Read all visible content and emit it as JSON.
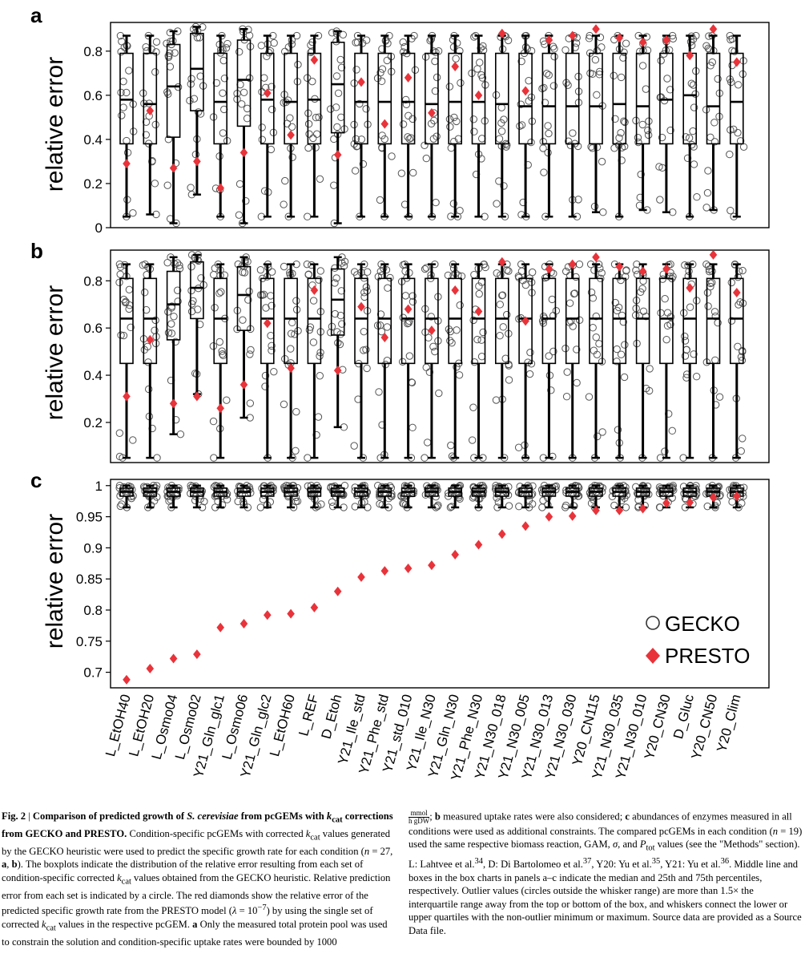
{
  "figure": {
    "panels": [
      {
        "letter": "a",
        "ylabel": "relative error"
      },
      {
        "letter": "b",
        "ylabel": "relative error"
      },
      {
        "letter": "c",
        "ylabel": "relative error"
      }
    ],
    "categories": [
      "L_EtOH40",
      "L_EtOH20",
      "L_Osmo04",
      "L_Osmo02",
      "Y21_Gln_glc1",
      "L_Osmo06",
      "Y21_Gln_glc2",
      "L_EtOH60",
      "L_REF",
      "D_Etoh",
      "Y21_Ile_std",
      "Y21_Phe_std",
      "Y21_std_010",
      "Y21_Ile_N30",
      "Y21_Gln_N30",
      "Y21_Phe_N30",
      "Y21_N30_018",
      "Y21_N30_005",
      "Y21_N30_013",
      "Y21_N30_030",
      "Y20_CN115",
      "Y21_N30_035",
      "Y21_N30_010",
      "Y20_CN30",
      "D_Gluc",
      "Y20_CN50",
      "Y20_Clim"
    ],
    "legend": {
      "gecko": "GECKO",
      "presto": "PRESTO"
    },
    "colors": {
      "presto": "#e8333a",
      "gecko": "#555555"
    }
  },
  "chart_data": [
    {
      "type": "box",
      "panel": "a",
      "ylabel": "relative error",
      "ylim": [
        0,
        0.93
      ],
      "yticks": [
        "0",
        "0.2",
        "0.4",
        "0.6",
        "0.8"
      ],
      "box_stats": {
        "L_EtOH40": {
          "whislo": 0.05,
          "q1": 0.38,
          "med": 0.58,
          "q3": 0.79,
          "whishi": 0.87
        },
        "L_EtOH20": {
          "whislo": 0.06,
          "q1": 0.38,
          "med": 0.56,
          "q3": 0.79,
          "whishi": 0.87
        },
        "L_Osmo04": {
          "whislo": 0.02,
          "q1": 0.41,
          "med": 0.64,
          "q3": 0.83,
          "whishi": 0.89
        },
        "L_Osmo02": {
          "whislo": 0.15,
          "q1": 0.53,
          "med": 0.72,
          "q3": 0.88,
          "whishi": 0.91
        },
        "Y21_Gln_glc1": {
          "whislo": 0.05,
          "q1": 0.38,
          "med": 0.57,
          "q3": 0.79,
          "whishi": 0.87
        },
        "L_Osmo06": {
          "whislo": 0.02,
          "q1": 0.46,
          "med": 0.67,
          "q3": 0.85,
          "whishi": 0.9
        },
        "Y21_Gln_glc2": {
          "whislo": 0.05,
          "q1": 0.38,
          "med": 0.58,
          "q3": 0.79,
          "whishi": 0.87
        },
        "L_EtOH60": {
          "whislo": 0.05,
          "q1": 0.38,
          "med": 0.57,
          "q3": 0.79,
          "whishi": 0.87
        },
        "L_REF": {
          "whislo": 0.05,
          "q1": 0.38,
          "med": 0.58,
          "q3": 0.79,
          "whishi": 0.87
        },
        "D_Etoh": {
          "whislo": 0.02,
          "q1": 0.43,
          "med": 0.65,
          "q3": 0.84,
          "whishi": 0.89
        },
        "Y21_Ile_std": {
          "whislo": 0.05,
          "q1": 0.38,
          "med": 0.57,
          "q3": 0.79,
          "whishi": 0.87
        },
        "Y21_Phe_std": {
          "whislo": 0.05,
          "q1": 0.38,
          "med": 0.57,
          "q3": 0.79,
          "whishi": 0.87
        },
        "Y21_std_010": {
          "whislo": 0.05,
          "q1": 0.38,
          "med": 0.57,
          "q3": 0.79,
          "whishi": 0.87
        },
        "Y21_Ile_N30": {
          "whislo": 0.05,
          "q1": 0.38,
          "med": 0.56,
          "q3": 0.79,
          "whishi": 0.87
        },
        "Y21_Gln_N30": {
          "whislo": 0.05,
          "q1": 0.38,
          "med": 0.57,
          "q3": 0.79,
          "whishi": 0.87
        },
        "Y21_Phe_N30": {
          "whislo": 0.05,
          "q1": 0.38,
          "med": 0.57,
          "q3": 0.79,
          "whishi": 0.87
        },
        "Y21_N30_018": {
          "whislo": 0.05,
          "q1": 0.38,
          "med": 0.56,
          "q3": 0.79,
          "whishi": 0.87
        },
        "Y21_N30_005": {
          "whislo": 0.05,
          "q1": 0.38,
          "med": 0.55,
          "q3": 0.79,
          "whishi": 0.87
        },
        "Y21_N30_013": {
          "whislo": 0.05,
          "q1": 0.38,
          "med": 0.55,
          "q3": 0.79,
          "whishi": 0.87
        },
        "Y21_N30_030": {
          "whislo": 0.05,
          "q1": 0.38,
          "med": 0.55,
          "q3": 0.79,
          "whishi": 0.87
        },
        "Y20_CN115": {
          "whislo": 0.07,
          "q1": 0.38,
          "med": 0.55,
          "q3": 0.79,
          "whishi": 0.87
        },
        "Y21_N30_035": {
          "whislo": 0.05,
          "q1": 0.38,
          "med": 0.56,
          "q3": 0.79,
          "whishi": 0.87
        },
        "Y21_N30_010": {
          "whislo": 0.08,
          "q1": 0.38,
          "med": 0.55,
          "q3": 0.79,
          "whishi": 0.87
        },
        "Y20_CN30": {
          "whislo": 0.07,
          "q1": 0.38,
          "med": 0.58,
          "q3": 0.79,
          "whishi": 0.87
        },
        "D_Gluc": {
          "whislo": 0.05,
          "q1": 0.38,
          "med": 0.6,
          "q3": 0.79,
          "whishi": 0.87
        },
        "Y20_CN50": {
          "whislo": 0.08,
          "q1": 0.38,
          "med": 0.55,
          "q3": 0.79,
          "whishi": 0.87
        },
        "Y20_Clim": {
          "whislo": 0.05,
          "q1": 0.38,
          "med": 0.57,
          "q3": 0.79,
          "whishi": 0.87
        }
      },
      "presto": [
        0.29,
        0.53,
        0.27,
        0.3,
        0.18,
        0.34,
        0.61,
        0.42,
        0.76,
        0.33,
        0.66,
        0.47,
        0.68,
        0.52,
        0.73,
        0.6,
        0.88,
        0.62,
        0.85,
        0.87,
        0.9,
        0.86,
        0.84,
        0.85,
        0.78,
        0.9,
        0.75
      ]
    },
    {
      "type": "box",
      "panel": "b",
      "ylabel": "relative error",
      "ylim": [
        0.03,
        0.93
      ],
      "yticks": [
        "0.2",
        "0.4",
        "0.6",
        "0.8"
      ],
      "box_stats": {
        "L_EtOH40": {
          "whislo": 0.05,
          "q1": 0.45,
          "med": 0.64,
          "q3": 0.81,
          "whishi": 0.87
        },
        "L_EtOH20": {
          "whislo": 0.05,
          "q1": 0.45,
          "med": 0.64,
          "q3": 0.81,
          "whishi": 0.87
        },
        "L_Osmo04": {
          "whislo": 0.15,
          "q1": 0.55,
          "med": 0.7,
          "q3": 0.84,
          "whishi": 0.9
        },
        "L_Osmo02": {
          "whislo": 0.32,
          "q1": 0.64,
          "med": 0.77,
          "q3": 0.88,
          "whishi": 0.91
        },
        "Y21_Gln_glc1": {
          "whislo": 0.05,
          "q1": 0.45,
          "med": 0.64,
          "q3": 0.81,
          "whishi": 0.87
        },
        "L_Osmo06": {
          "whislo": 0.22,
          "q1": 0.59,
          "med": 0.74,
          "q3": 0.86,
          "whishi": 0.9
        },
        "Y21_Gln_glc2": {
          "whislo": 0.05,
          "q1": 0.45,
          "med": 0.64,
          "q3": 0.81,
          "whishi": 0.87
        },
        "L_EtOH60": {
          "whislo": 0.05,
          "q1": 0.45,
          "med": 0.64,
          "q3": 0.81,
          "whishi": 0.87
        },
        "L_REF": {
          "whislo": 0.05,
          "q1": 0.45,
          "med": 0.64,
          "q3": 0.81,
          "whishi": 0.87
        },
        "D_Etoh": {
          "whislo": 0.18,
          "q1": 0.57,
          "med": 0.72,
          "q3": 0.85,
          "whishi": 0.9
        },
        "Y21_Ile_std": {
          "whislo": 0.05,
          "q1": 0.45,
          "med": 0.64,
          "q3": 0.81,
          "whishi": 0.87
        },
        "Y21_Phe_std": {
          "whislo": 0.05,
          "q1": 0.45,
          "med": 0.64,
          "q3": 0.81,
          "whishi": 0.87
        },
        "Y21_std_010": {
          "whislo": 0.05,
          "q1": 0.45,
          "med": 0.64,
          "q3": 0.81,
          "whishi": 0.87
        },
        "Y21_Ile_N30": {
          "whislo": 0.05,
          "q1": 0.45,
          "med": 0.64,
          "q3": 0.81,
          "whishi": 0.87
        },
        "Y21_Gln_N30": {
          "whislo": 0.05,
          "q1": 0.45,
          "med": 0.64,
          "q3": 0.81,
          "whishi": 0.87
        },
        "Y21_Phe_N30": {
          "whislo": 0.05,
          "q1": 0.45,
          "med": 0.64,
          "q3": 0.81,
          "whishi": 0.87
        },
        "Y21_N30_018": {
          "whislo": 0.05,
          "q1": 0.45,
          "med": 0.64,
          "q3": 0.81,
          "whishi": 0.87
        },
        "Y21_N30_005": {
          "whislo": 0.05,
          "q1": 0.45,
          "med": 0.64,
          "q3": 0.81,
          "whishi": 0.87
        },
        "Y21_N30_013": {
          "whislo": 0.05,
          "q1": 0.45,
          "med": 0.64,
          "q3": 0.81,
          "whishi": 0.87
        },
        "Y21_N30_030": {
          "whislo": 0.05,
          "q1": 0.45,
          "med": 0.64,
          "q3": 0.81,
          "whishi": 0.87
        },
        "Y20_CN115": {
          "whislo": 0.05,
          "q1": 0.45,
          "med": 0.64,
          "q3": 0.81,
          "whishi": 0.87
        },
        "Y21_N30_035": {
          "whislo": 0.05,
          "q1": 0.45,
          "med": 0.64,
          "q3": 0.81,
          "whishi": 0.87
        },
        "Y21_N30_010": {
          "whislo": 0.05,
          "q1": 0.45,
          "med": 0.64,
          "q3": 0.81,
          "whishi": 0.87
        },
        "Y20_CN30": {
          "whislo": 0.05,
          "q1": 0.45,
          "med": 0.64,
          "q3": 0.81,
          "whishi": 0.87
        },
        "D_Gluc": {
          "whislo": 0.05,
          "q1": 0.45,
          "med": 0.64,
          "q3": 0.81,
          "whishi": 0.87
        },
        "Y20_CN50": {
          "whislo": 0.05,
          "q1": 0.45,
          "med": 0.64,
          "q3": 0.81,
          "whishi": 0.87
        },
        "Y20_Clim": {
          "whislo": 0.05,
          "q1": 0.45,
          "med": 0.64,
          "q3": 0.81,
          "whishi": 0.87
        }
      },
      "presto": [
        0.31,
        0.55,
        0.28,
        0.31,
        0.26,
        0.36,
        0.62,
        0.43,
        0.76,
        0.42,
        0.69,
        0.56,
        0.68,
        0.59,
        0.76,
        0.67,
        0.88,
        0.63,
        0.85,
        0.87,
        0.9,
        0.86,
        0.84,
        0.85,
        0.77,
        0.91,
        0.75
      ]
    },
    {
      "type": "box",
      "panel": "c",
      "ylabel": "relative error",
      "ylim": [
        0.675,
        1.01
      ],
      "yticks": [
        "0.7",
        "0.75",
        "0.8",
        "0.85",
        "0.9",
        "0.95",
        "1"
      ],
      "box_stats_all": {
        "whislo": 0.965,
        "q1": 0.983,
        "med": 0.99,
        "q3": 0.996,
        "whishi": 1.0
      },
      "presto": [
        0.688,
        0.706,
        0.722,
        0.729,
        0.772,
        0.778,
        0.792,
        0.794,
        0.804,
        0.83,
        0.853,
        0.863,
        0.867,
        0.872,
        0.889,
        0.905,
        0.922,
        0.935,
        0.95,
        0.951,
        0.96,
        0.96,
        0.963,
        0.972,
        0.973,
        0.981,
        0.983
      ],
      "legend": [
        "GECKO",
        "PRESTO"
      ]
    }
  ],
  "caption": {
    "fig_label": "Fig. 2",
    "sep": " | ",
    "title_a": "Comparison of predicted growth of ",
    "title_species": "S. cerevisiae",
    "title_b": " from pcGEMs with ",
    "title_kcat": "k",
    "title_kcat_sub": "cat",
    "title_c": " corrections from GECKO and PRESTO.",
    "t1": " Condition-specific pcGEMs with corrected ",
    "kcat_k": "k",
    "kcat_sub": "cat",
    "t2": " values generated by the GECKO heuristic were used to predict the specific growth rate for each condition (",
    "n27": "n",
    "t3": " = 27, ",
    "a": "a",
    "comma": ", ",
    "b": "b",
    "t4": "). The boxplots indicate the distribution of the relative error resulting from each set of condition-specific corrected ",
    "t5": " values obtained from the GECKO heuristic. Relative prediction error from each set is indicated by a circle. The red diamonds show the relative error of the predicted specific growth rate from the PRESTO model (",
    "lambda": "λ",
    "t6": " = 10",
    "exp": "−7",
    "t7": ") by using the single set of corrected ",
    "t8": " values in the respective pcGEM. ",
    "t9": " Only the measured total protein pool was used to constrain the solution and condition-specific uptake rates were bounded by 1000 ",
    "unit_num": "mmol",
    "unit_den": "h gDW",
    "t10": "; ",
    "t11": " measured uptake rates were also considered; ",
    "c": "c",
    "t12": " abundances of enzymes measured in all conditions were used as additional constraints. The compared pcGEMs in each condition (",
    "n19": "n",
    "t13": " = 19) used the same respective biomass reaction, GAM, ",
    "sigma": "σ",
    "t14": ", and ",
    "ptot_p": "P",
    "ptot_sub": "tot",
    "t15": " values (see the \"Methods\" section). L: Lahtvee et al.",
    "ref34": "34",
    "t16": ", D: Di Bartolomeo et al.",
    "ref37": "37",
    "t17": ", Y20: Yu et al.",
    "ref35": "35",
    "t18": ", Y21: Yu et al.",
    "ref36": "36",
    "t19": ". Middle line and boxes in the box charts in panels a–c indicate the median and 25th and 75th percentiles, respectively. Outlier values (circles outside the whisker range) are more than 1.5× the interquartile range away from the top or bottom of the box, and whiskers connect the lower or upper quartiles with the non-outlier minimum or maximum. Source data are provided as a Source Data file."
  }
}
